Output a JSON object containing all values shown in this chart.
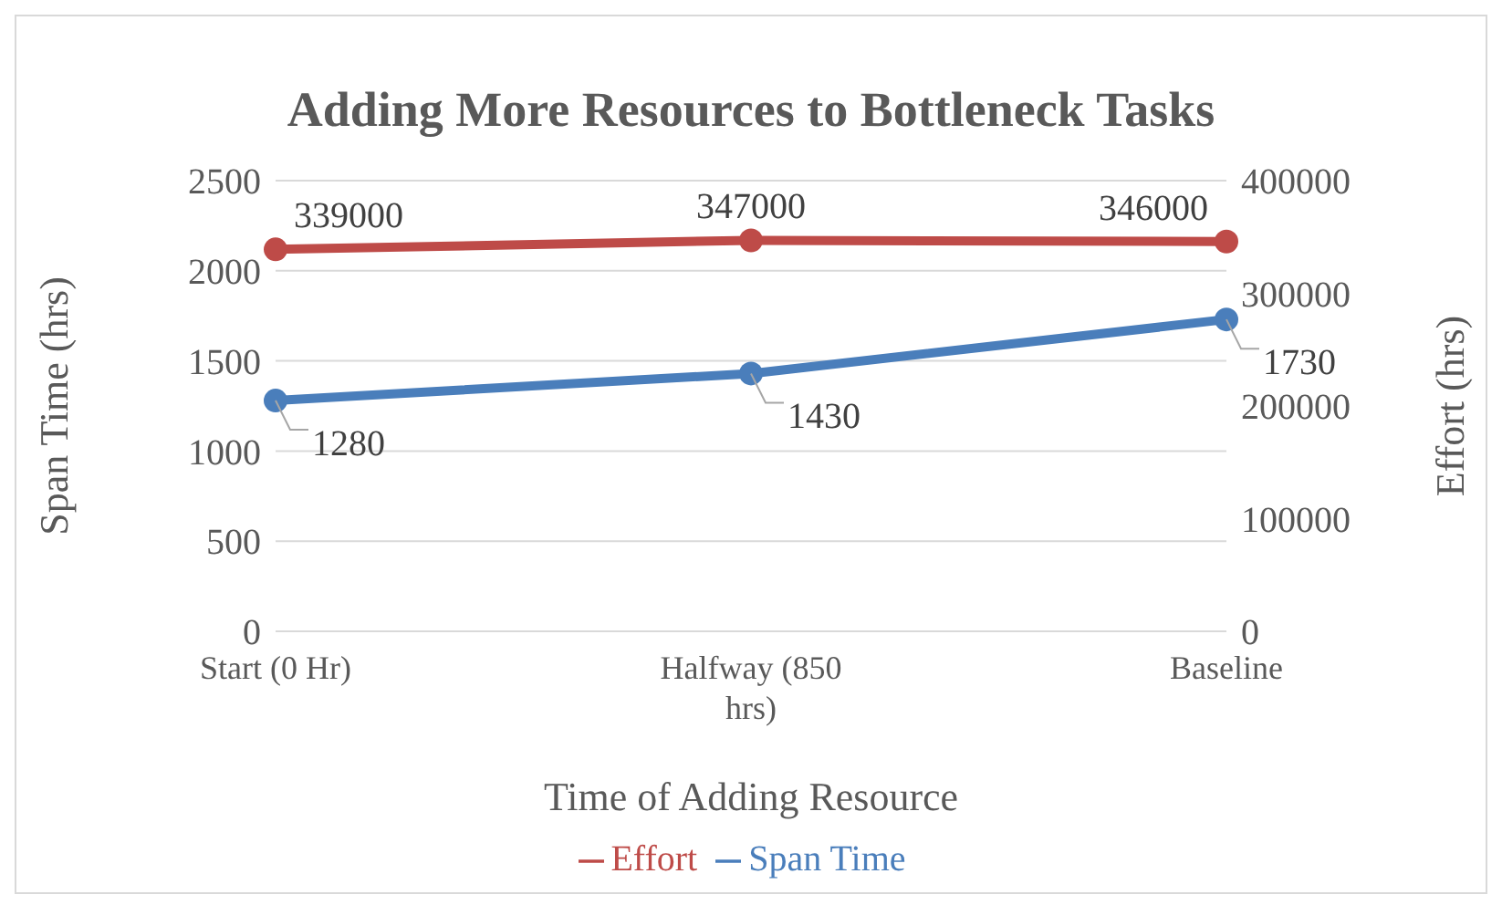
{
  "chart_data": {
    "type": "line",
    "title": "Adding More Resources to Bottleneck Tasks",
    "xlabel": "Time of Adding Resource",
    "ylabel": "Span Time (hrs)",
    "y2label": "Effort (hrs)",
    "categories": [
      "Start (0 Hr)",
      "Halfway (850 hrs)",
      "Baseline"
    ],
    "series": [
      {
        "name": "Span Time",
        "color": "#4a7ebb",
        "values": [
          1280,
          1430,
          1730
        ]
      },
      {
        "name": "Effort",
        "color": "#be4b48",
        "values": [
          339000,
          347000,
          346000
        ],
        "axis": "y2"
      }
    ],
    "ylim": [
      0,
      2500
    ],
    "yticks": [
      0,
      500,
      1000,
      1500,
      2000,
      2500
    ],
    "y2lim": [
      0,
      400000
    ],
    "y2ticks": [
      0,
      100000,
      200000,
      300000,
      400000
    ],
    "grid": "y",
    "legend": "bottom",
    "marker": "circle",
    "line_style": "solid",
    "data_labels": true
  }
}
